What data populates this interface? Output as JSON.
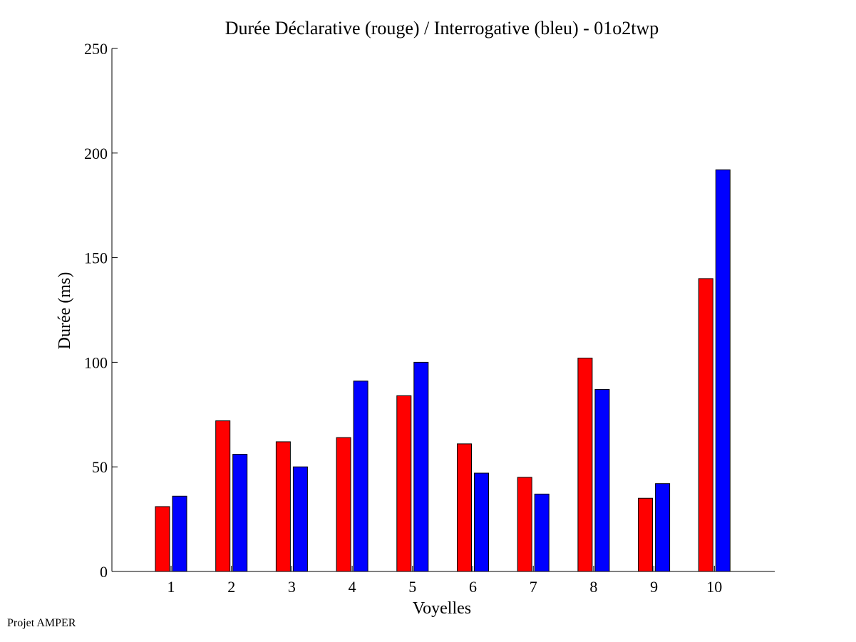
{
  "footer": {
    "credit": "Projet AMPER"
  },
  "chart_data": {
    "type": "bar",
    "title": "Durée Déclarative (rouge) / Interrogative (bleu) - 01o2twp",
    "xlabel": "Voyelles",
    "ylabel": "Durée (ms)",
    "categories": [
      "1",
      "2",
      "3",
      "4",
      "5",
      "6",
      "7",
      "8",
      "9",
      "10"
    ],
    "ylim": [
      0,
      250
    ],
    "yticks": [
      "0",
      "50",
      "100",
      "150",
      "200",
      "250"
    ],
    "series": [
      {
        "color": "#ff0000",
        "values": [
          31,
          72,
          62,
          64,
          84,
          61,
          45,
          102,
          35,
          140
        ]
      },
      {
        "color": "#0000ff",
        "values": [
          36,
          56,
          50,
          91,
          100,
          47,
          37,
          87,
          42,
          192
        ]
      }
    ],
    "grid": false,
    "legend": "none"
  }
}
